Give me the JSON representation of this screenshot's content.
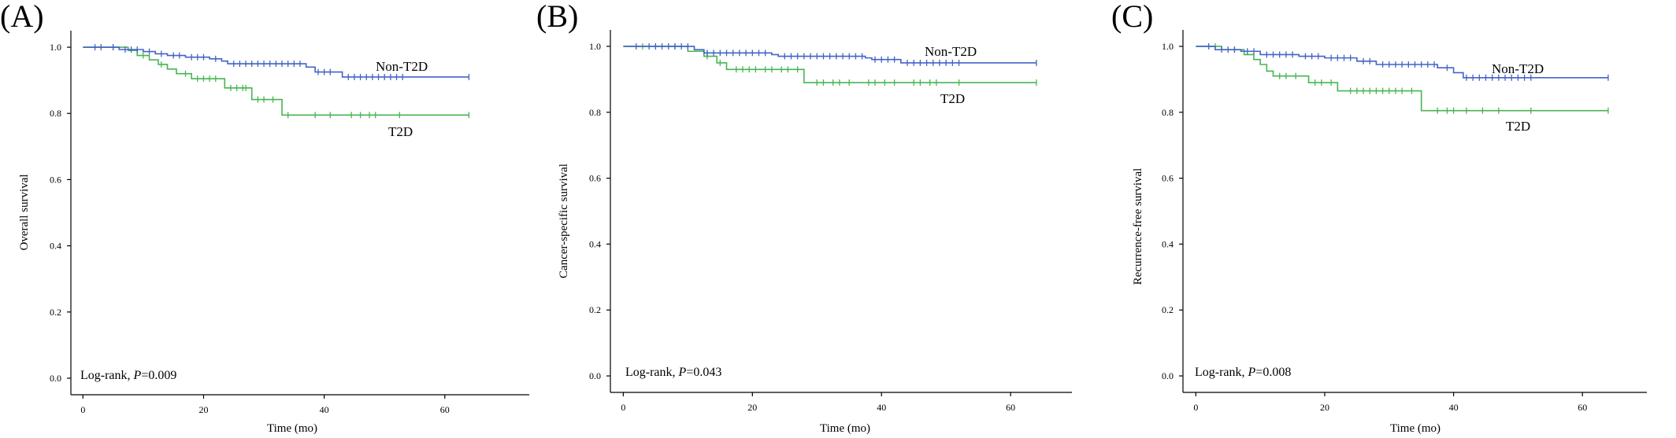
{
  "chart_data": [
    {
      "type": "line",
      "panel_label": "(A)",
      "xlabel": "Time (mo)",
      "ylabel": "Overall survival",
      "xlim": [
        -2,
        74
      ],
      "ylim": [
        -0.05,
        1.05
      ],
      "xticks": [
        0,
        20,
        40,
        60
      ],
      "xtick_labels": [
        "0",
        "20",
        "40",
        "60"
      ],
      "yticks": [
        0,
        0.2,
        0.4,
        0.6,
        0.8,
        1.0
      ],
      "ytick_labels": [
        "0.0",
        "0.2",
        "0.4",
        "0.6",
        "0.8",
        "1.0"
      ],
      "grid": false,
      "annotation": {
        "prefix": "Log-rank,",
        "stat": "P",
        "value": "=0.009"
      },
      "series": [
        {
          "name": "Non-T2D",
          "color": "#4363c6",
          "steps": [
            [
              0,
              1.0
            ],
            [
              6,
              0.993
            ],
            [
              10,
              0.987
            ],
            [
              12,
              0.98
            ],
            [
              14,
              0.975
            ],
            [
              17,
              0.97
            ],
            [
              21,
              0.965
            ],
            [
              23,
              0.958
            ],
            [
              24,
              0.95
            ],
            [
              37,
              0.94
            ],
            [
              38.5,
              0.925
            ],
            [
              43,
              0.91
            ]
          ],
          "censored_times": [
            2,
            3,
            5,
            7,
            8,
            9,
            11,
            13,
            15,
            16,
            18,
            19,
            20,
            22,
            25,
            26,
            27,
            28,
            29,
            30,
            31,
            32,
            33,
            34,
            35,
            36,
            39,
            40,
            41,
            44,
            45,
            46,
            47,
            48,
            49,
            50,
            51,
            52,
            53,
            64
          ]
        },
        {
          "name": "T2D",
          "color": "#47b551",
          "steps": [
            [
              0,
              1.0
            ],
            [
              7.5,
              0.99
            ],
            [
              9,
              0.975
            ],
            [
              11,
              0.962
            ],
            [
              12.5,
              0.948
            ],
            [
              14,
              0.934
            ],
            [
              15.5,
              0.92
            ],
            [
              18,
              0.905
            ],
            [
              23.5,
              0.877
            ],
            [
              28,
              0.842
            ],
            [
              33,
              0.795
            ]
          ],
          "censored_times": [
            5,
            10,
            13,
            17,
            19,
            20,
            21,
            22,
            24.5,
            25.5,
            26.5,
            27,
            29,
            30,
            31.5,
            34,
            38.5,
            41,
            44.5,
            46,
            47.5,
            48.5,
            52.5,
            64
          ]
        }
      ]
    },
    {
      "type": "line",
      "panel_label": "(B)",
      "xlabel": "Time (mo)",
      "ylabel": "Cancer-specific survival",
      "xlim": [
        -2,
        69.5
      ],
      "ylim": [
        -0.05,
        1.05
      ],
      "xticks": [
        0,
        20,
        40,
        60
      ],
      "xtick_labels": [
        "0",
        "20",
        "40",
        "60"
      ],
      "yticks": [
        0,
        0.2,
        0.4,
        0.6,
        0.8,
        1.0
      ],
      "ytick_labels": [
        "0.0",
        "0.2",
        "0.4",
        "0.6",
        "0.8",
        "1.0"
      ],
      "grid": false,
      "annotation": {
        "prefix": "Log-rank,",
        "stat": "P",
        "value": "=0.043"
      },
      "series": [
        {
          "name": "Non-T2D",
          "color": "#4363c6",
          "steps": [
            [
              0,
              1.0
            ],
            [
              11,
              0.99
            ],
            [
              12.5,
              0.98
            ],
            [
              23,
              0.975
            ],
            [
              24,
              0.97
            ],
            [
              37.5,
              0.965
            ],
            [
              38.5,
              0.96
            ],
            [
              43,
              0.95
            ]
          ],
          "censored_times": [
            2,
            4,
            5,
            6,
            7,
            8,
            9,
            10,
            13,
            14,
            15,
            16,
            17,
            18,
            19,
            20,
            21,
            22,
            25,
            26,
            27,
            28,
            29,
            30,
            31,
            32,
            33,
            34,
            35,
            36,
            37,
            39,
            40,
            41,
            42,
            44,
            45,
            46,
            47,
            48,
            49,
            50,
            51,
            52,
            64
          ]
        },
        {
          "name": "T2D",
          "color": "#47b551",
          "steps": [
            [
              0,
              1.0
            ],
            [
              10,
              0.985
            ],
            [
              12.5,
              0.97
            ],
            [
              14.5,
              0.95
            ],
            [
              16,
              0.93
            ],
            [
              28,
              0.89
            ]
          ],
          "censored_times": [
            3,
            5,
            8,
            13,
            15,
            17.5,
            18.5,
            19.5,
            20.5,
            22,
            23,
            24.5,
            25.5,
            27,
            30,
            31,
            32.5,
            33.5,
            35,
            38,
            39,
            40.5,
            42,
            45,
            46,
            47.5,
            48.5,
            52,
            64
          ]
        }
      ]
    },
    {
      "type": "line",
      "panel_label": "(C)",
      "xlabel": "Time (mo)",
      "ylabel": "Recurrence-free survival",
      "xlim": [
        -2,
        70
      ],
      "ylim": [
        -0.05,
        1.05
      ],
      "xticks": [
        0,
        20,
        40,
        60
      ],
      "xtick_labels": [
        "0",
        "20",
        "40",
        "60"
      ],
      "yticks": [
        0,
        0.2,
        0.4,
        0.6,
        0.8,
        1.0
      ],
      "ytick_labels": [
        "0.0",
        "0.2",
        "0.4",
        "0.6",
        "0.8",
        "1.0"
      ],
      "grid": false,
      "annotation": {
        "prefix": "Log-rank,",
        "stat": "P",
        "value": "=0.008"
      },
      "series": [
        {
          "name": "Non-T2D",
          "color": "#4363c6",
          "steps": [
            [
              0,
              1.0
            ],
            [
              3,
              0.99
            ],
            [
              7,
              0.985
            ],
            [
              10,
              0.975
            ],
            [
              16,
              0.97
            ],
            [
              20,
              0.965
            ],
            [
              25,
              0.955
            ],
            [
              28,
              0.945
            ],
            [
              37.5,
              0.935
            ],
            [
              40,
              0.92
            ],
            [
              41.5,
              0.905
            ]
          ],
          "censored_times": [
            2,
            4,
            5,
            6,
            8,
            9,
            11,
            12,
            13,
            14,
            15,
            17,
            18,
            19,
            21,
            22,
            23,
            24,
            26,
            27,
            29,
            30,
            31,
            32,
            33,
            34,
            35,
            36,
            37,
            39,
            42,
            43,
            44,
            45,
            46,
            47,
            48,
            49,
            50,
            51,
            52,
            64
          ]
        },
        {
          "name": "T2D",
          "color": "#47b551",
          "steps": [
            [
              0,
              1.0
            ],
            [
              4,
              0.99
            ],
            [
              7.5,
              0.975
            ],
            [
              9,
              0.96
            ],
            [
              10,
              0.945
            ],
            [
              11,
              0.925
            ],
            [
              12,
              0.91
            ],
            [
              17.5,
              0.89
            ],
            [
              22,
              0.865
            ],
            [
              35,
              0.805
            ]
          ],
          "censored_times": [
            3,
            6,
            13,
            14,
            15.5,
            18.5,
            19.5,
            21,
            24,
            25,
            26,
            27,
            28,
            29,
            30,
            31,
            32,
            33.5,
            37.5,
            39,
            40,
            42,
            44.5,
            47,
            52,
            64
          ]
        }
      ]
    }
  ]
}
